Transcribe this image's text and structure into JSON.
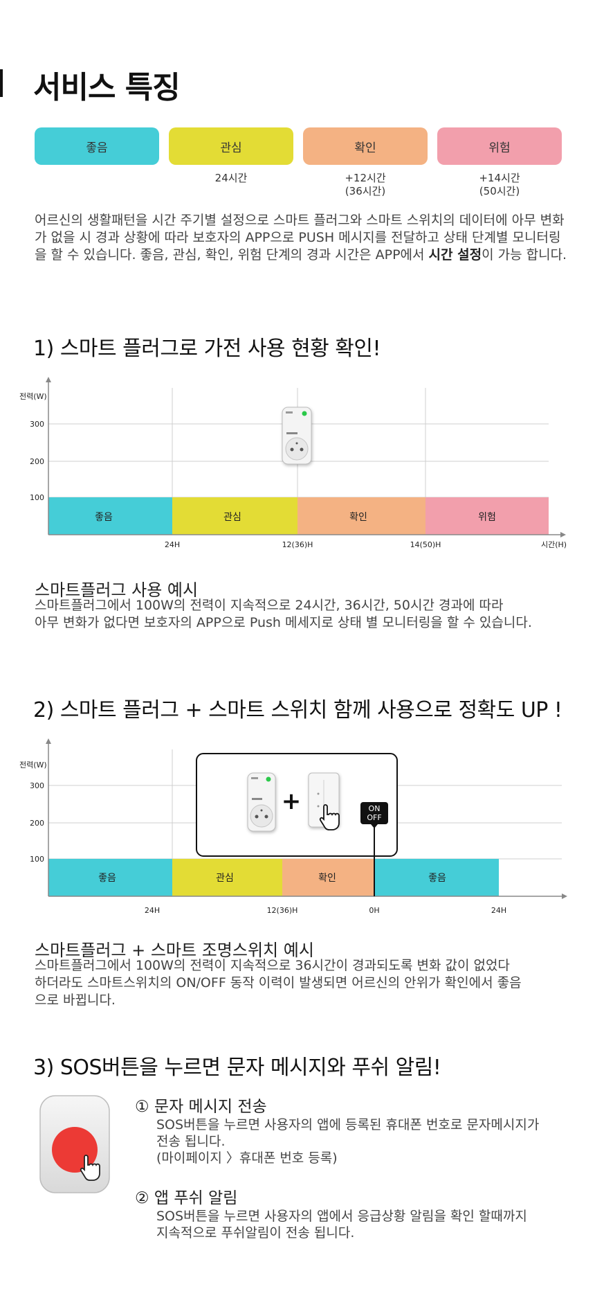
{
  "header": {
    "title": "서비스 특징"
  },
  "stages": [
    {
      "label": "좋음",
      "color": "#45cdd7",
      "time": ""
    },
    {
      "label": "관심",
      "color": "#e3dc35",
      "time": "24시간"
    },
    {
      "label": "확인",
      "color": "#f4b283",
      "time": "+12시간\n(36시간)"
    },
    {
      "label": "위험",
      "color": "#f29fac",
      "time": "+14시간\n(50시간)"
    }
  ],
  "intro": {
    "text_1": "어르신의 생활패턴을 시간 주기별 설정으로 스마트 플러그와 스마트 스위치의 데이터에 아무 변화가 없을 시 경과 상황에 따라 보호자의 APP으로 PUSH 메시지를 전달하고 상태 단계별 모니터링을 할 수 있습니다. 좋음, 관심, 확인, 위험 단계의 경과 시간은 APP에서 ",
    "bold": "시간 설정",
    "text_2": "이 가능 합니다."
  },
  "section1": {
    "heading": "1) 스마트 플러그로 가전 사용 현황 확인!",
    "example_title": "스마트플러그 사용 예시",
    "example_desc": "스마트플러그에서 100W의 전력이 지속적으로 24시간, 36시간, 50시간 경과에 따라\n아무 변화가 없다면 보호자의 APP으로 Push 메세지로 상태 별 모니터링을 할 수 있습니다."
  },
  "section2": {
    "heading": "2) 스마트 플러그 + 스마트 스위치 함께 사용으로 정확도 UP !",
    "plus": "+",
    "on_label": "ON",
    "off_label": "OFF",
    "example_title": "스마트플러그 + 스마트 조명스위치 예시",
    "example_desc": "스마트플러그에서 100W의 전력이 지속적으로 36시간이 경과되도록 변화 값이 없었다\n하더라도 스마트스위치의 ON/OFF 동작 이력이 발생되면 어르신의 안위가 확인에서 좋음\n으로 바뀝니다."
  },
  "section3": {
    "heading": "3) SOS버튼을 누르면 문자 메시지와 푸쉬 알림!",
    "items": [
      {
        "title": "① 문자 메시지 전송",
        "desc": "SOS버튼을 누르면 사용자의 앱에 등록된 휴대폰 번호로 문자메시지가\n전송 됩니다.\n(마이페이지 〉휴대폰 번호 등록)"
      },
      {
        "title": "② 앱 푸쉬 알림",
        "desc": "SOS버튼을 누르면 사용자의 앱에서 응급상황 알림을 확인 할때까지\n지속적으로 푸쉬알림이 전송 됩니다."
      }
    ]
  },
  "chart_data": [
    {
      "type": "bar",
      "ylabel": "전력(W)",
      "xlabel": "시간(H)",
      "yticks": [
        100,
        200,
        300
      ],
      "xticks": [
        "24H",
        "12(36)H",
        "14(50)H"
      ],
      "segments": [
        {
          "label": "좋음",
          "value": 100,
          "color": "#45cdd7"
        },
        {
          "label": "관심",
          "value": 100,
          "color": "#e3dc35"
        },
        {
          "label": "확인",
          "value": 100,
          "color": "#f4b283"
        },
        {
          "label": "위험",
          "value": 100,
          "color": "#f29fac"
        }
      ]
    },
    {
      "type": "bar",
      "ylabel": "전력(W)",
      "xlabel": "",
      "yticks": [
        100,
        200,
        300
      ],
      "xticks": [
        "24H",
        "12(36)H",
        "0H",
        "24H"
      ],
      "segments": [
        {
          "label": "좋음",
          "value": 100,
          "color": "#45cdd7"
        },
        {
          "label": "관심",
          "value": 100,
          "color": "#e3dc35"
        },
        {
          "label": "확인",
          "value": 100,
          "color": "#f4b283"
        },
        {
          "label": "좋음",
          "value": 100,
          "color": "#45cdd7"
        }
      ]
    }
  ]
}
